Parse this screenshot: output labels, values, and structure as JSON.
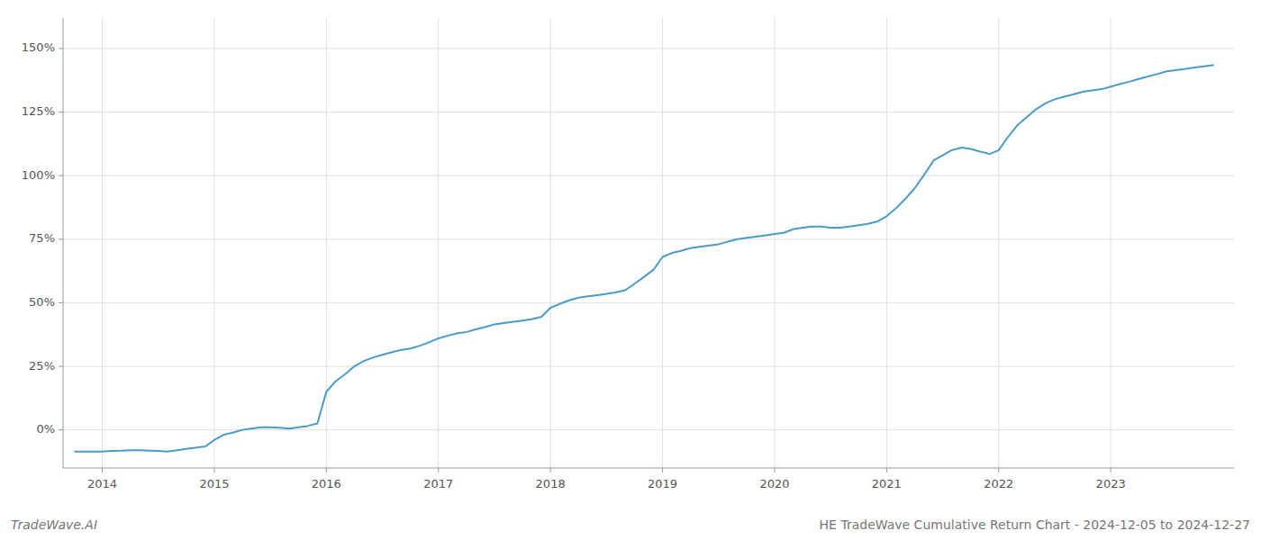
{
  "chart_data": {
    "type": "line",
    "title": "HE TradeWave Cumulative Return Chart - 2024-12-05 to 2024-12-27",
    "annotations": [
      "TradeWave.AI"
    ],
    "color": "#4a9cc7",
    "grid": true,
    "x": [
      2013.75,
      2013.83,
      2013.92,
      2014.0,
      2014.08,
      2014.17,
      2014.25,
      2014.33,
      2014.42,
      2014.5,
      2014.58,
      2014.67,
      2014.75,
      2014.83,
      2014.92,
      2015.0,
      2015.08,
      2015.17,
      2015.25,
      2015.33,
      2015.42,
      2015.5,
      2015.58,
      2015.67,
      2015.75,
      2015.83,
      2015.92,
      2016.0,
      2016.08,
      2016.17,
      2016.25,
      2016.33,
      2016.42,
      2016.5,
      2016.58,
      2016.67,
      2016.75,
      2016.83,
      2016.92,
      2017.0,
      2017.08,
      2017.17,
      2017.25,
      2017.33,
      2017.42,
      2017.5,
      2017.58,
      2017.67,
      2017.75,
      2017.83,
      2017.92,
      2018.0,
      2018.08,
      2018.17,
      2018.25,
      2018.33,
      2018.42,
      2018.5,
      2018.58,
      2018.67,
      2018.75,
      2018.83,
      2018.92,
      2019.0,
      2019.08,
      2019.17,
      2019.25,
      2019.33,
      2019.42,
      2019.5,
      2019.58,
      2019.67,
      2019.75,
      2019.83,
      2019.92,
      2020.0,
      2020.08,
      2020.17,
      2020.25,
      2020.33,
      2020.42,
      2020.5,
      2020.58,
      2020.67,
      2020.75,
      2020.83,
      2020.92,
      2021.0,
      2021.08,
      2021.17,
      2021.25,
      2021.33,
      2021.42,
      2021.5,
      2021.58,
      2021.67,
      2021.75,
      2021.83,
      2021.92,
      2022.0,
      2022.08,
      2022.17,
      2022.25,
      2022.33,
      2022.42,
      2022.5,
      2022.58,
      2022.67,
      2022.75,
      2022.83,
      2022.92,
      2023.0,
      2023.08,
      2023.17,
      2023.25,
      2023.33,
      2023.42,
      2023.5,
      2023.58,
      2023.67,
      2023.75,
      2023.83,
      2023.92
    ],
    "values": [
      -8.5,
      -8.5,
      -8.5,
      -8.5,
      -8.3,
      -8.2,
      -8.0,
      -8.0,
      -8.2,
      -8.3,
      -8.5,
      -8.0,
      -7.5,
      -7.0,
      -6.5,
      -4.0,
      -2.0,
      -1.0,
      0.0,
      0.5,
      1.0,
      1.0,
      0.8,
      0.5,
      1.0,
      1.5,
      2.5,
      15.0,
      19.0,
      22.0,
      25.0,
      27.0,
      28.5,
      29.5,
      30.5,
      31.5,
      32.0,
      33.0,
      34.5,
      36.0,
      37.0,
      38.0,
      38.5,
      39.5,
      40.5,
      41.5,
      42.0,
      42.5,
      43.0,
      43.5,
      44.5,
      48.0,
      49.5,
      51.0,
      52.0,
      52.5,
      53.0,
      53.5,
      54.0,
      55.0,
      57.5,
      60.0,
      63.0,
      68.0,
      69.5,
      70.5,
      71.5,
      72.0,
      72.5,
      73.0,
      74.0,
      75.0,
      75.5,
      76.0,
      76.5,
      77.0,
      77.5,
      79.0,
      79.5,
      80.0,
      80.0,
      79.5,
      79.5,
      80.0,
      80.5,
      81.0,
      82.0,
      84.0,
      87.0,
      91.0,
      95.0,
      100.0,
      106.0,
      108.0,
      110.0,
      111.0,
      110.5,
      109.5,
      108.5,
      110.0,
      115.0,
      120.0,
      123.0,
      126.0,
      128.5,
      130.0,
      131.0,
      132.0,
      133.0,
      133.5,
      134.0,
      135.0,
      136.0,
      137.0,
      138.0,
      139.0,
      140.0,
      141.0,
      141.5,
      142.0,
      142.5,
      143.0,
      143.5
    ],
    "xlim": [
      2013.65,
      2024.1
    ],
    "xticks": [
      2014,
      2015,
      2016,
      2017,
      2018,
      2019,
      2020,
      2021,
      2022,
      2023
    ],
    "ylim": [
      -15,
      162
    ],
    "yticks": [
      {
        "value": 0,
        "label": "0%"
      },
      {
        "value": 25,
        "label": "25%"
      },
      {
        "value": 50,
        "label": "50%"
      },
      {
        "value": 75,
        "label": "75%"
      },
      {
        "value": 100,
        "label": "100%"
      },
      {
        "value": 125,
        "label": "125%"
      },
      {
        "value": 150,
        "label": "150%"
      }
    ]
  }
}
